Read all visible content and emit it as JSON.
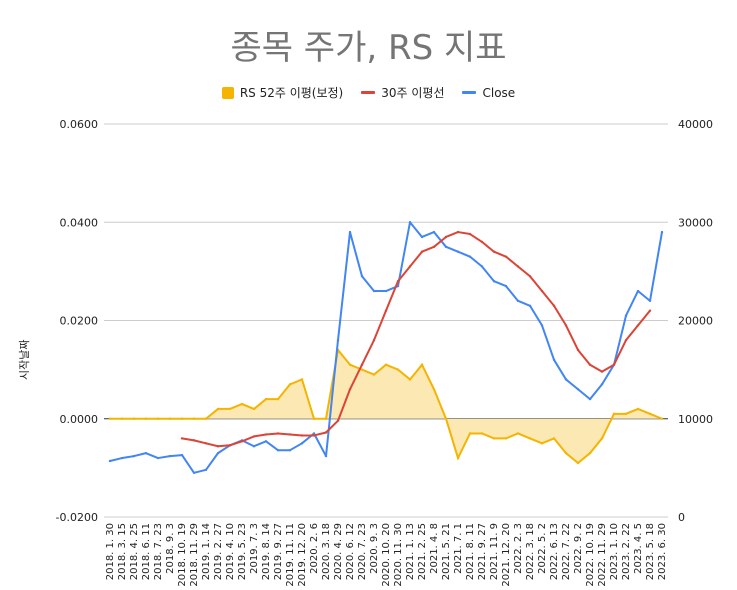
{
  "chart_data": {
    "type": "line",
    "title": "종목 주가, RS 지표",
    "ylabel": "시작날짜",
    "ylim": [
      -0.02,
      0.06
    ],
    "y2lim": [
      0,
      40000
    ],
    "yticks": [
      "0.0600",
      "0.0400",
      "0.0200",
      "0.0000",
      "-0.0200"
    ],
    "yticks_values": [
      0.06,
      0.04,
      0.02,
      0.0,
      -0.02
    ],
    "y2ticks": [
      "40000",
      "30000",
      "20000",
      "10000",
      "0"
    ],
    "y2ticks_values": [
      40000,
      30000,
      20000,
      10000,
      0
    ],
    "categories": [
      "2018. 1. 30",
      "2018. 3. 15",
      "2018. 4. 25",
      "2018. 6. 11",
      "2018. 7. 23",
      "2018. 9. 3",
      "2018. 10. 19",
      "2018. 11. 29",
      "2019. 1. 14",
      "2019. 2. 27",
      "2019. 4. 10",
      "2019. 5. 23",
      "2019. 7. 3",
      "2019. 8. 14",
      "2019. 9. 27",
      "2019. 11. 11",
      "2019. 12. 20",
      "2020. 2. 6",
      "2020. 3. 18",
      "2020. 4. 29",
      "2020. 6. 12",
      "2020. 7. 23",
      "2020. 9. 3",
      "2020. 10. 20",
      "2020. 11. 30",
      "2021. 1. 13",
      "2021. 2. 25",
      "2021. 4. 8",
      "2021. 5. 21",
      "2021. 7. 1",
      "2021. 8. 11",
      "2021. 9. 27",
      "2021. 11. 9",
      "2021. 12. 20",
      "2022. 2. 3",
      "2022. 3. 18",
      "2022. 5. 2",
      "2022. 6. 13",
      "2022. 7. 22",
      "2022. 9. 2",
      "2022. 10. 19",
      "2022. 11. 29",
      "2023. 1. 10",
      "2023. 2. 22",
      "2023. 4. 5",
      "2023. 5. 18",
      "2023. 6. 30"
    ],
    "series": [
      {
        "name": "RS 52주 이평(보정)",
        "axis": "left",
        "kind": "area",
        "color": "#f4b400",
        "fill": "#fce8b2",
        "values": [
          0,
          0,
          0,
          0,
          0,
          0,
          0,
          0,
          0,
          0.002,
          0.002,
          0.003,
          0.002,
          0.004,
          0.004,
          0.007,
          0.008,
          0,
          0,
          0.014,
          0.011,
          0.01,
          0.009,
          0.011,
          0.01,
          0.008,
          0.011,
          0.006,
          0,
          -0.008,
          -0.003,
          -0.003,
          -0.004,
          -0.004,
          -0.003,
          -0.004,
          -0.005,
          -0.004,
          -0.007,
          -0.009,
          -0.007,
          -0.004,
          0.001,
          0.001,
          0.002,
          0.001,
          0
        ]
      },
      {
        "name": "30주 이평선",
        "axis": "right",
        "kind": "line",
        "color": "#db4437",
        "values": [
          null,
          null,
          null,
          null,
          null,
          null,
          8000,
          7800,
          7500,
          7200,
          7300,
          7700,
          8200,
          8400,
          8500,
          8400,
          8300,
          8300,
          8600,
          9800,
          13000,
          15500,
          18000,
          21000,
          24000,
          25500,
          27000,
          27500,
          28500,
          29000,
          28800,
          28000,
          27000,
          26500,
          25500,
          24500,
          23000,
          21500,
          19500,
          17000,
          15500,
          14800,
          15500,
          18000,
          19500,
          21000,
          null
        ]
      },
      {
        "name": "Close",
        "axis": "right",
        "kind": "line",
        "color": "#4285f4",
        "values": [
          5700,
          6000,
          6200,
          6500,
          6000,
          6200,
          6300,
          4500,
          4800,
          6500,
          7300,
          7800,
          7200,
          7700,
          6800,
          6800,
          7500,
          8500,
          6200,
          18000,
          29000,
          24500,
          23000,
          23000,
          23500,
          30000,
          28500,
          29000,
          27500,
          27000,
          26500,
          25500,
          24000,
          23500,
          22000,
          21500,
          19500,
          16000,
          14000,
          13000,
          12000,
          13500,
          15500,
          20500,
          23000,
          22000,
          29000
        ]
      }
    ]
  }
}
